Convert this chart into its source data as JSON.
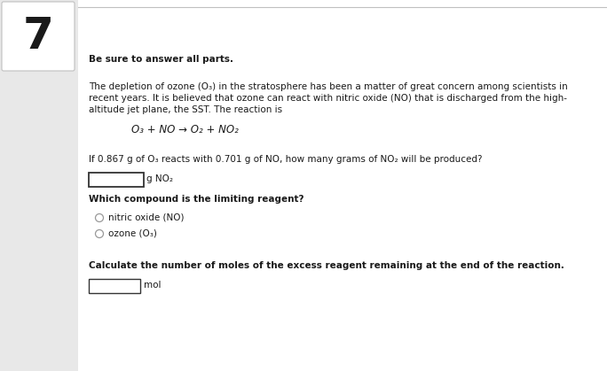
{
  "question_number": "7",
  "bg_color": "#e8e8e8",
  "content_bg": "#ffffff",
  "num_box_color": "#ffffff",
  "instruction": "Be sure to answer all parts.",
  "para_line1": "The depletion of ozone (O₃) in the stratosphere has been a matter of great concern among scientists in",
  "para_line2": "recent years. It is believed that ozone can react with nitric oxide (NO) that is discharged from the high-",
  "para_line3": "altitude jet plane, the SST. The reaction is",
  "equation": "O₃ + NO → O₂ + NO₂",
  "question1": "If 0.867 g of O₃ reacts with 0.701 g of NO, how many grams of NO₂ will be produced?",
  "answer_label1": "g NO₂",
  "question2": "Which compound is the limiting reagent?",
  "radio1": "nitric oxide (NO)",
  "radio2": "ozone (O₃)",
  "question3": "Calculate the number of moles of the excess reagent remaining at the end of the reaction.",
  "answer_label2": "mol",
  "font_color": "#1a1a1a",
  "border_color": "#c0c0c0",
  "radio_color": "#999999",
  "box_border_color": "#333333",
  "figw": 6.84,
  "figh": 4.19,
  "dpi": 100
}
